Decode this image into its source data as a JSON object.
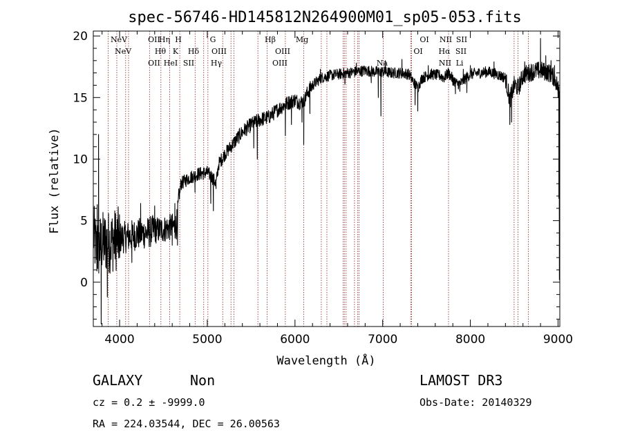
{
  "chart_data": {
    "type": "line",
    "title": "spec-56746-HD145812N264900M01_sp05-053.fits",
    "xlabel": "Wavelength (Å)",
    "ylabel": "Flux (relative)",
    "xlim": [
      3700,
      9020
    ],
    "ylim": [
      -3.6,
      20.4
    ],
    "xticks": [
      {
        "value": 4000,
        "label": "4000"
      },
      {
        "value": 5000,
        "label": "5000"
      },
      {
        "value": 6000,
        "label": "6000"
      },
      {
        "value": 7000,
        "label": "7000"
      },
      {
        "value": 8000,
        "label": "8000"
      },
      {
        "value": 9000,
        "label": "9000"
      }
    ],
    "yticks": [
      {
        "value": 0,
        "label": "0"
      },
      {
        "value": 5,
        "label": "5"
      },
      {
        "value": 10,
        "label": "10"
      },
      {
        "value": 15,
        "label": "15"
      },
      {
        "value": 20,
        "label": "20"
      }
    ],
    "series": [
      {
        "color": "#000000",
        "anchors": [
          [
            3700,
            4.0
          ],
          [
            3740,
            2.5
          ],
          [
            3800,
            3.2
          ],
          [
            3900,
            3.3
          ],
          [
            4000,
            3.6
          ],
          [
            4100,
            3.7
          ],
          [
            4200,
            3.9
          ],
          [
            4300,
            4.0
          ],
          [
            4400,
            4.2
          ],
          [
            4500,
            4.3
          ],
          [
            4600,
            4.5
          ],
          [
            4650,
            4.6
          ],
          [
            4680,
            7.0
          ],
          [
            4700,
            8.0
          ],
          [
            4800,
            8.5
          ],
          [
            4900,
            8.8
          ],
          [
            5000,
            8.9
          ],
          [
            5050,
            8.6
          ],
          [
            5100,
            8.0
          ],
          [
            5130,
            9.6
          ],
          [
            5200,
            10.4
          ],
          [
            5300,
            11.3
          ],
          [
            5400,
            12.2
          ],
          [
            5500,
            12.8
          ],
          [
            5600,
            13.2
          ],
          [
            5700,
            13.4
          ],
          [
            5800,
            14.0
          ],
          [
            5900,
            14.5
          ],
          [
            6000,
            14.8
          ],
          [
            6050,
            14.6
          ],
          [
            6100,
            14.7
          ],
          [
            6150,
            15.5
          ],
          [
            6200,
            16.0
          ],
          [
            6300,
            16.6
          ],
          [
            6400,
            16.8
          ],
          [
            6500,
            16.9
          ],
          [
            6600,
            17.0
          ],
          [
            6700,
            17.1
          ],
          [
            6800,
            17.2
          ],
          [
            6900,
            17.1
          ],
          [
            7000,
            17.1
          ],
          [
            7100,
            17.0
          ],
          [
            7200,
            17.0
          ],
          [
            7300,
            16.9
          ],
          [
            7350,
            16.3
          ],
          [
            7400,
            15.8
          ],
          [
            7450,
            16.6
          ],
          [
            7550,
            16.9
          ],
          [
            7650,
            16.8
          ],
          [
            7700,
            16.6
          ],
          [
            7750,
            17.0
          ],
          [
            7800,
            16.5
          ],
          [
            7850,
            16.1
          ],
          [
            7900,
            16.2
          ],
          [
            7950,
            16.6
          ],
          [
            8000,
            16.9
          ],
          [
            8100,
            17.0
          ],
          [
            8200,
            17.1
          ],
          [
            8300,
            16.9
          ],
          [
            8400,
            16.6
          ],
          [
            8450,
            14.8
          ],
          [
            8500,
            16.0
          ],
          [
            8550,
            15.8
          ],
          [
            8600,
            16.8
          ],
          [
            8700,
            17.1
          ],
          [
            8800,
            17.2
          ],
          [
            8900,
            17.0
          ],
          [
            8960,
            16.6
          ],
          [
            9000,
            15.8
          ]
        ],
        "features": [
          [
            3745,
            6.3
          ],
          [
            3760,
            12.0
          ],
          [
            3790,
            -3.4
          ],
          [
            3860,
            -1.2
          ],
          [
            4000,
            2.0
          ],
          [
            4140,
            1.6
          ],
          [
            4240,
            6.4
          ],
          [
            4400,
            6.2
          ],
          [
            4600,
            3.0
          ],
          [
            4630,
            6.4
          ],
          [
            4660,
            3.0
          ],
          [
            4860,
            7.3
          ],
          [
            5040,
            6.4
          ],
          [
            5070,
            5.8
          ],
          [
            5100,
            7.6
          ],
          [
            5180,
            9.9
          ],
          [
            5530,
            10.9
          ],
          [
            5570,
            10.0
          ],
          [
            5890,
            11.9
          ],
          [
            5960,
            12.8
          ],
          [
            6080,
            13.0
          ],
          [
            6100,
            11.2
          ],
          [
            6170,
            13.7
          ],
          [
            6290,
            17.3
          ],
          [
            6570,
            16.1
          ],
          [
            6700,
            17.8
          ],
          [
            6870,
            16.2
          ],
          [
            6950,
            15.0
          ],
          [
            6980,
            13.5
          ],
          [
            7030,
            18.0
          ],
          [
            7220,
            18.1
          ],
          [
            7370,
            14.4
          ],
          [
            7400,
            13.9
          ],
          [
            7520,
            17.6
          ],
          [
            7800,
            16.0
          ],
          [
            7830,
            15.3
          ],
          [
            7880,
            15.5
          ],
          [
            7920,
            17.3
          ],
          [
            7960,
            15.4
          ],
          [
            8000,
            17.6
          ],
          [
            8270,
            17.9
          ],
          [
            8450,
            12.8
          ],
          [
            8470,
            13.0
          ],
          [
            8620,
            17.9
          ],
          [
            8800,
            19.8
          ],
          [
            8860,
            18.4
          ],
          [
            8920,
            18.0
          ],
          [
            8960,
            17.6
          ],
          [
            9000,
            15.0
          ],
          [
            9010,
            6.8
          ],
          [
            9015,
            0.2
          ]
        ]
      }
    ],
    "line_markers": {
      "color": "#8b1a1a",
      "wavelengths": [
        3869,
        3968,
        4069,
        4102,
        4341,
        4471,
        4571,
        4686,
        4861,
        4959,
        5007,
        5176,
        5270,
        5303,
        5577,
        5683,
        5890,
        6100,
        6300,
        6364,
        6548,
        6563,
        6583,
        6678,
        6716,
        6731,
        7007,
        7320,
        7330,
        7751,
        8499,
        8542,
        8662
      ],
      "labels": [
        {
          "text": "NeV",
          "row": 0
        },
        {
          "text": "NeV",
          "row": 1
        },
        {
          "text": "OII",
          "row": 0
        },
        {
          "text": "Hη",
          "row": 0
        },
        {
          "text": "H",
          "row": 0
        },
        {
          "text": "Hθ",
          "row": 1
        },
        {
          "text": "K",
          "row": 1
        },
        {
          "text": "OII",
          "row": 2
        },
        {
          "text": "HeI",
          "row": 2
        },
        {
          "text": "Hδ",
          "row": 1
        },
        {
          "text": "SII",
          "row": 2
        },
        {
          "text": "G",
          "row": 0
        },
        {
          "text": "OIII",
          "row": 1
        },
        {
          "text": "Hγ",
          "row": 2
        },
        {
          "text": "Hβ",
          "row": 0
        },
        {
          "text": "OIII",
          "row": 1
        },
        {
          "text": "OIII",
          "row": 2
        },
        {
          "text": "Mg",
          "row": 0
        },
        {
          "text": "Na",
          "row": 2
        },
        {
          "text": "OI",
          "row": 0
        },
        {
          "text": "OI",
          "row": 1
        },
        {
          "text": "NII",
          "row": 0
        },
        {
          "text": "Hα",
          "row": 1
        },
        {
          "text": "NII",
          "row": 2
        },
        {
          "text": "SII",
          "row": 0
        },
        {
          "text": "SII",
          "row": 1
        },
        {
          "text": "Li",
          "row": 2
        }
      ]
    }
  },
  "info": {
    "object_class": "GALAXY",
    "subclass": "Non",
    "survey": "LAMOST DR3",
    "redshift": "cz = 0.2 ± -9999.0",
    "obs_date": "Obs-Date: 20140329",
    "coords": "RA = 224.03544, DEC =  26.00563"
  }
}
